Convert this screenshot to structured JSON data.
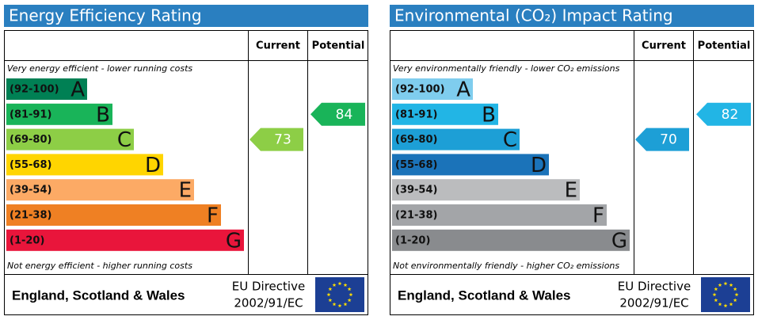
{
  "chart_data": [
    {
      "type": "rating",
      "title": "Energy Efficiency Rating",
      "current_label": "Current",
      "potential_label": "Potential",
      "top_note": "Very energy efficient - lower running costs",
      "bottom_note": "Not energy efficient - higher running costs",
      "bands": [
        {
          "range": "(92-100)",
          "letter": "A",
          "color": "#008054"
        },
        {
          "range": "(81-91)",
          "letter": "B",
          "color": "#19b459"
        },
        {
          "range": "(69-80)",
          "letter": "C",
          "color": "#8dce46"
        },
        {
          "range": "(55-68)",
          "letter": "D",
          "color": "#ffd500"
        },
        {
          "range": "(39-54)",
          "letter": "E",
          "color": "#fcaa65"
        },
        {
          "range": "(21-38)",
          "letter": "F",
          "color": "#ef8023"
        },
        {
          "range": "(1-20)",
          "letter": "G",
          "color": "#e9153b"
        }
      ],
      "current": 73,
      "potential": 84,
      "footer": {
        "region": "England, Scotland & Wales",
        "directive": "EU Directive",
        "code": "2002/91/EC"
      }
    },
    {
      "type": "rating",
      "title": "Environmental (CO₂) Impact Rating",
      "current_label": "Current",
      "potential_label": "Potential",
      "top_note": "Very environmentally friendly - lower CO₂ emissions",
      "bottom_note": "Not environmentally friendly - higher CO₂ emissions",
      "bands": [
        {
          "range": "(92-100)",
          "letter": "A",
          "color": "#7fcdee"
        },
        {
          "range": "(81-91)",
          "letter": "B",
          "color": "#22b5e5"
        },
        {
          "range": "(69-80)",
          "letter": "C",
          "color": "#1d9fd6"
        },
        {
          "range": "(55-68)",
          "letter": "D",
          "color": "#1b73b9"
        },
        {
          "range": "(39-54)",
          "letter": "E",
          "color": "#bbbcbe"
        },
        {
          "range": "(21-38)",
          "letter": "F",
          "color": "#a3a5a8"
        },
        {
          "range": "(1-20)",
          "letter": "G",
          "color": "#898b8e"
        }
      ],
      "current": 70,
      "potential": 82,
      "footer": {
        "region": "England, Scotland & Wales",
        "directive": "EU Directive",
        "code": "2002/91/EC"
      }
    }
  ]
}
